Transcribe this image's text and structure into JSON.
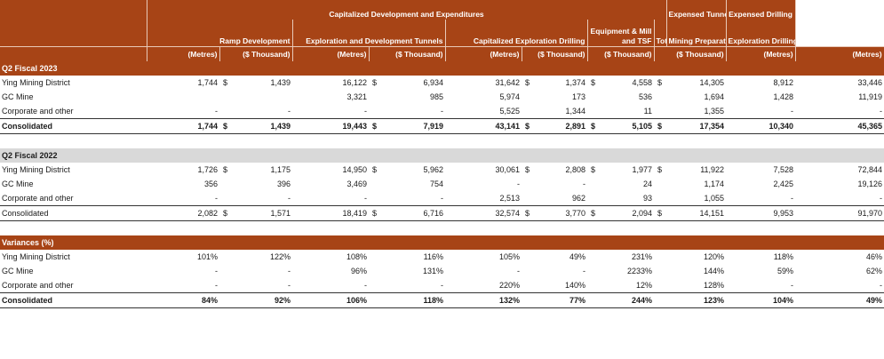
{
  "header": {
    "group_title": "Capitalized Development and Expenditures",
    "expensed_tunneling": "Expensed Tunneling",
    "expensed_drilling": "Expensed Drilling",
    "ramp_development": "Ramp Development",
    "exploration_tunnels": "Exploration and Development Tunnels",
    "cap_exploration_drilling": "Capitalized Exploration Drilling",
    "equipment_mill": "Equipment & Mill and TSF",
    "total": "Total",
    "mining_preparation": "Mining Preparation",
    "exploration_drilling": "Exploration Drilling",
    "units": [
      "(Metres)",
      "($ Thousand)",
      "(Metres)",
      "($ Thousand)",
      "(Metres)",
      "($ Thousand)",
      "($ Thousand)",
      "($ Thousand)",
      "(Metres)",
      "(Metres)"
    ]
  },
  "sections": {
    "q2_2023": {
      "title": "Q2 Fiscal 2023",
      "rows": [
        {
          "label": "Ying Mining District",
          "v": [
            "1,744",
            "$",
            "1,439",
            "16,122",
            "$",
            "6,934",
            "31,642",
            "$",
            "1,374",
            "$",
            "4,558",
            "$",
            "14,305",
            "8,912",
            "33,446"
          ]
        },
        {
          "label": "GC Mine",
          "v": [
            "",
            "",
            "",
            "3,321",
            "",
            "985",
            "5,974",
            "",
            "173",
            "",
            "536",
            "",
            "1,694",
            "1,428",
            "11,919"
          ]
        },
        {
          "label": "Corporate and other",
          "v": [
            "-",
            "",
            "-",
            "-",
            "",
            "-",
            "5,525",
            "",
            "1,344",
            "",
            "11",
            "",
            "1,355",
            "-",
            "-"
          ]
        },
        {
          "label": "Consolidated",
          "v": [
            "1,744",
            "$",
            "1,439",
            "19,443",
            "$",
            "7,919",
            "43,141",
            "$",
            "2,891",
            "$",
            "5,105",
            "$",
            "17,354",
            "10,340",
            "45,365"
          ]
        }
      ]
    },
    "q2_2022": {
      "title": "Q2 Fiscal 2022",
      "rows": [
        {
          "label": "Ying Mining District",
          "v": [
            "1,726",
            "$",
            "1,175",
            "14,950",
            "$",
            "5,962",
            "30,061",
            "$",
            "2,808",
            "$",
            "1,977",
            "$",
            "11,922",
            "7,528",
            "72,844"
          ]
        },
        {
          "label": "GC Mine",
          "v": [
            "356",
            "",
            "396",
            "3,469",
            "",
            "754",
            "-",
            "",
            "-",
            "",
            "24",
            "",
            "1,174",
            "2,425",
            "19,126"
          ]
        },
        {
          "label": "Corporate and other",
          "v": [
            "-",
            "",
            "-",
            "-",
            "",
            "-",
            "2,513",
            "",
            "962",
            "",
            "93",
            "",
            "1,055",
            "-",
            "-"
          ]
        },
        {
          "label": "Consolidated",
          "v": [
            "2,082",
            "$",
            "1,571",
            "18,419",
            "$",
            "6,716",
            "32,574",
            "$",
            "3,770",
            "$",
            "2,094",
            "$",
            "14,151",
            "9,953",
            "91,970"
          ]
        }
      ]
    },
    "variances": {
      "title": "Variances (%)",
      "rows": [
        {
          "label": "Ying Mining District",
          "v": [
            "101%",
            "",
            "122%",
            "108%",
            "",
            "116%",
            "105%",
            "",
            "49%",
            "",
            "231%",
            "",
            "120%",
            "118%",
            "46%"
          ]
        },
        {
          "label": "GC Mine",
          "v": [
            "-",
            "",
            "-",
            "96%",
            "",
            "131%",
            "-",
            "",
            "-",
            "",
            "2233%",
            "",
            "144%",
            "59%",
            "62%"
          ]
        },
        {
          "label": "Corporate and other",
          "v": [
            "-",
            "",
            "-",
            "-",
            "",
            "-",
            "220%",
            "",
            "140%",
            "",
            "12%",
            "",
            "128%",
            "-",
            "-"
          ]
        },
        {
          "label": "Consolidated",
          "v": [
            "84%",
            "",
            "92%",
            "106%",
            "",
            "118%",
            "132%",
            "",
            "77%",
            "",
            "244%",
            "",
            "123%",
            "104%",
            "49%"
          ]
        }
      ]
    }
  }
}
